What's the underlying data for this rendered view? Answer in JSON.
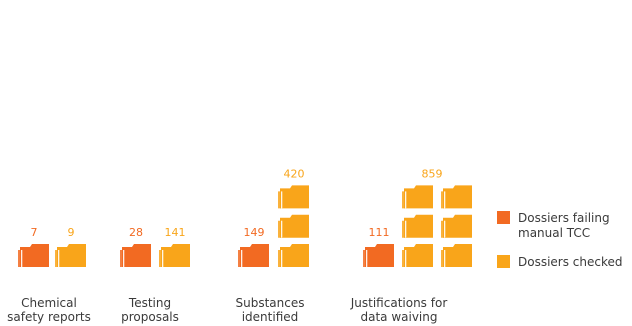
{
  "chart_data": {
    "type": "bar",
    "categories": [
      [
        "Chemical",
        "safety reports"
      ],
      [
        "Testing",
        "proposals"
      ],
      [
        "Substances",
        "identified"
      ],
      [
        "Justifications for",
        "data waiving"
      ]
    ],
    "series": [
      {
        "name": "Dossiers failing manual TCC",
        "values": [
          7,
          28,
          149,
          111
        ]
      },
      {
        "name": "Dossiers checked",
        "values": [
          9,
          141,
          420,
          859
        ]
      }
    ],
    "legend": {
      "position": "right",
      "items": [
        {
          "lines": [
            "Dossiers failing",
            "manual TCC"
          ]
        },
        {
          "lines": [
            "Dossiers checked"
          ]
        }
      ]
    },
    "colors": {
      "failing": "#f26a22",
      "checked": "#f9a51a"
    },
    "icon": "folder-icon",
    "grid": false
  }
}
